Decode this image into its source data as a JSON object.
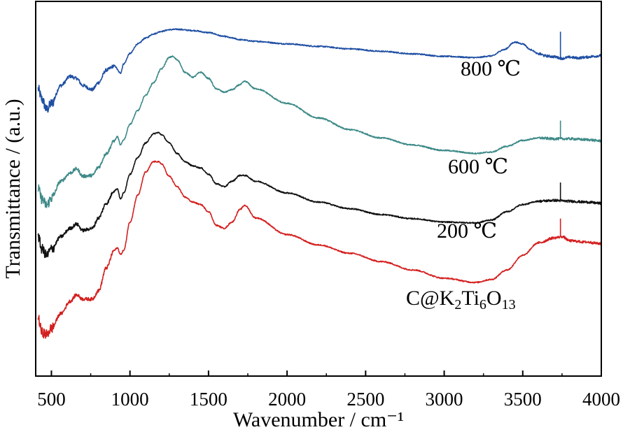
{
  "chart_data": {
    "type": "line",
    "xlabel": "Wavenumber / cm⁻¹",
    "ylabel": "Transmittance / (a.u.)",
    "xlim": [
      400,
      4000
    ],
    "x_ticks": [
      500,
      1000,
      1500,
      2000,
      2500,
      3000,
      3500,
      4000
    ],
    "grid": false,
    "y_tick_labels": false,
    "series": [
      {
        "name": "800 ℃",
        "color": "#1f4fa3",
        "x": [
          415,
          440,
          470,
          500,
          560,
          620,
          660,
          700,
          760,
          800,
          850,
          900,
          940,
          960,
          1000,
          1050,
          1100,
          1150,
          1200,
          1250,
          1300,
          1400,
          1500,
          1600,
          1650,
          1700,
          1800,
          2000,
          2200,
          2400,
          2600,
          2800,
          3000,
          3200,
          3300,
          3380,
          3450,
          3500,
          3550,
          3600,
          3650,
          3700,
          3750,
          3800,
          3850,
          3900,
          3950,
          4000
        ],
        "y": [
          -0.7,
          -0.95,
          -1.2,
          -1.05,
          -0.62,
          -0.4,
          -0.45,
          -0.62,
          -0.72,
          -0.55,
          -0.25,
          -0.15,
          -0.32,
          -0.1,
          0.15,
          0.38,
          0.52,
          0.62,
          0.68,
          0.72,
          0.73,
          0.7,
          0.65,
          0.56,
          0.52,
          0.48,
          0.44,
          0.38,
          0.32,
          0.26,
          0.2,
          0.14,
          0.08,
          0.05,
          0.09,
          0.24,
          0.42,
          0.38,
          0.24,
          0.14,
          0.09,
          0.07,
          0.03,
          0.06,
          0.04,
          0.06,
          0.08,
          0.1
        ],
        "label_text": "800 ℃"
      },
      {
        "name": "600 ℃",
        "color": "#3d8a88",
        "x": [
          415,
          440,
          470,
          500,
          560,
          620,
          660,
          700,
          760,
          800,
          850,
          900,
          920,
          940,
          960,
          1000,
          1050,
          1100,
          1150,
          1200,
          1250,
          1270,
          1300,
          1350,
          1400,
          1450,
          1500,
          1550,
          1600,
          1650,
          1700,
          1730,
          1800,
          2000,
          2200,
          2400,
          2600,
          2800,
          3000,
          3200,
          3300,
          3400,
          3500,
          3600,
          3700,
          3800,
          3900,
          4000
        ],
        "y": [
          -3.1,
          -3.35,
          -3.5,
          -3.32,
          -2.92,
          -2.72,
          -2.62,
          -2.8,
          -2.78,
          -2.58,
          -2.25,
          -1.95,
          -1.85,
          -2.05,
          -1.92,
          -1.55,
          -1.22,
          -0.85,
          -0.55,
          -0.22,
          0.05,
          0.08,
          0.0,
          -0.3,
          -0.42,
          -0.3,
          -0.45,
          -0.7,
          -0.78,
          -0.72,
          -0.6,
          -0.52,
          -0.7,
          -1.05,
          -1.4,
          -1.68,
          -1.88,
          -2.05,
          -2.18,
          -2.25,
          -2.22,
          -2.08,
          -1.94,
          -1.88,
          -1.9,
          -1.9,
          -1.92,
          -1.95
        ],
        "label_text": "600 ℃"
      },
      {
        "name": "200 ℃",
        "color": "#111111",
        "x": [
          415,
          440,
          470,
          500,
          560,
          620,
          660,
          700,
          760,
          800,
          850,
          900,
          920,
          940,
          960,
          1000,
          1050,
          1100,
          1150,
          1180,
          1200,
          1250,
          1300,
          1350,
          1400,
          1450,
          1500,
          1550,
          1600,
          1650,
          1700,
          1730,
          1800,
          2000,
          2200,
          2400,
          2600,
          2800,
          3000,
          3200,
          3300,
          3400,
          3500,
          3600,
          3700,
          3800,
          3900,
          4000
        ],
        "y": [
          -4.25,
          -4.55,
          -4.7,
          -4.55,
          -4.25,
          -4.05,
          -3.95,
          -4.1,
          -4.05,
          -3.8,
          -3.45,
          -3.15,
          -3.1,
          -3.35,
          -3.2,
          -2.75,
          -2.35,
          -2.0,
          -1.78,
          -1.75,
          -1.8,
          -2.0,
          -2.25,
          -2.45,
          -2.55,
          -2.6,
          -2.75,
          -2.98,
          -3.05,
          -2.92,
          -2.78,
          -2.78,
          -2.92,
          -3.2,
          -3.42,
          -3.58,
          -3.72,
          -3.82,
          -3.9,
          -3.92,
          -3.85,
          -3.65,
          -3.48,
          -3.4,
          -3.38,
          -3.4,
          -3.42,
          -3.45
        ],
        "label_text": "200 ℃"
      },
      {
        "name": "C@K2Ti6O13",
        "color": "#d42020",
        "x": [
          415,
          440,
          470,
          500,
          560,
          620,
          660,
          700,
          760,
          800,
          850,
          900,
          920,
          940,
          960,
          1000,
          1050,
          1100,
          1150,
          1180,
          1200,
          1250,
          1300,
          1350,
          1400,
          1450,
          1500,
          1550,
          1600,
          1650,
          1700,
          1730,
          1800,
          2000,
          2200,
          2400,
          2600,
          2800,
          3000,
          3200,
          3300,
          3400,
          3500,
          3600,
          3700,
          3750,
          3800,
          3900,
          4000
        ],
        "y": [
          -6.2,
          -6.55,
          -6.6,
          -6.45,
          -6.1,
          -5.8,
          -5.65,
          -5.75,
          -5.75,
          -5.55,
          -5.0,
          -4.58,
          -4.52,
          -4.68,
          -4.58,
          -3.9,
          -3.25,
          -2.7,
          -2.45,
          -2.45,
          -2.5,
          -2.8,
          -3.05,
          -3.3,
          -3.42,
          -3.48,
          -3.65,
          -3.98,
          -4.05,
          -3.9,
          -3.6,
          -3.5,
          -3.8,
          -4.2,
          -4.45,
          -4.65,
          -4.85,
          -5.05,
          -5.25,
          -5.35,
          -5.28,
          -5.05,
          -4.7,
          -4.4,
          -4.28,
          -4.25,
          -4.35,
          -4.38,
          -4.42
        ],
        "label_text": "C@K",
        "label_sub1": "2",
        "label_mid": "Ti",
        "label_sub2": "6",
        "label_mid2": "O",
        "label_sub3": "13"
      }
    ]
  }
}
